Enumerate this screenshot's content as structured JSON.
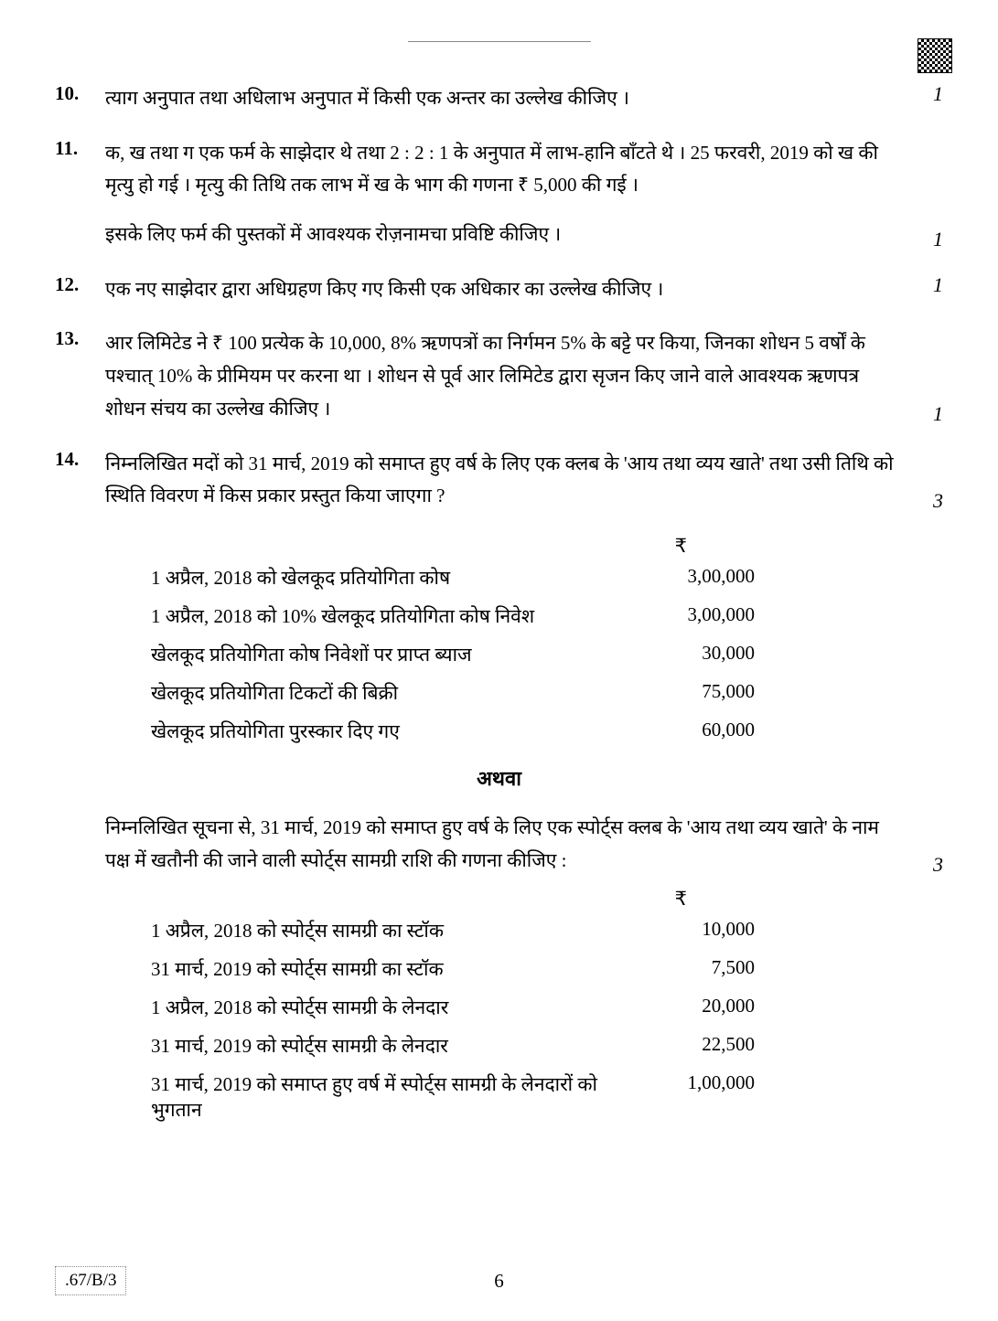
{
  "header": {
    "qr_present": true
  },
  "questions": [
    {
      "num": "10.",
      "text": "त्याग अनुपात तथा अधिलाभ अनुपात में किसी एक अन्तर का उल्लेख कीजिए ।",
      "marks": "1"
    },
    {
      "num": "11.",
      "text": "क, ख तथा ग एक फर्म के साझेदार थे तथा 2 : 2 : 1 के अनुपात में लाभ-हानि बाँटते थे । 25 फरवरी, 2019 को ख की मृत्यु हो गई । मृत्यु की तिथि तक लाभ में ख के भाग की गणना ₹ 5,000 की गई ।",
      "sub_text": "इसके लिए फर्म की पुस्तकों में आवश्यक रोज़नामचा प्रविष्टि कीजिए ।",
      "marks": "1"
    },
    {
      "num": "12.",
      "text": "एक नए साझेदार द्वारा अधिग्रहण किए गए किसी एक अधिकार का उल्लेख कीजिए ।",
      "marks": "1"
    },
    {
      "num": "13.",
      "text": "आर लिमिटेड ने ₹ 100 प्रत्येक के 10,000, 8% ऋणपत्रों का निर्गमन 5% के बट्टे पर किया, जिनका शोधन 5 वर्षों के पश्चात् 10% के प्रीमियम पर करना था । शोधन से पूर्व आर लिमिटेड द्वारा सृजन किए जाने वाले आवश्यक ऋणपत्र शोधन संचय का उल्लेख कीजिए ।",
      "marks": "1"
    },
    {
      "num": "14.",
      "text": "निम्नलिखित मदों को 31 मार्च, 2019 को समाप्त हुए वर्ष के लिए एक क्लब के 'आय तथा व्यय खाते' तथा उसी तिथि को स्थिति विवरण में किस प्रकार प्रस्तुत किया जाएगा ?",
      "marks": "3"
    }
  ],
  "table1": {
    "currency": "₹",
    "rows": [
      {
        "label": "1 अप्रैल, 2018 को खेलकूद प्रतियोगिता कोष",
        "value": "3,00,000"
      },
      {
        "label": "1 अप्रैल, 2018 को 10% खेलकूद प्रतियोगिता कोष निवेश",
        "value": "3,00,000"
      },
      {
        "label": "खेलकूद प्रतियोगिता कोष निवेशों पर प्राप्त ब्याज",
        "value": "30,000"
      },
      {
        "label": "खेलकूद प्रतियोगिता टिकटों की बिक्री",
        "value": "75,000"
      },
      {
        "label": "खेलकूद प्रतियोगिता पुरस्कार दिए गए",
        "value": "60,000"
      }
    ]
  },
  "athva": "अथवा",
  "alt_question": {
    "text": "निम्नलिखित सूचना से, 31 मार्च, 2019 को समाप्त हुए वर्ष के लिए एक स्पोर्ट्स क्लब के 'आय तथा व्यय खाते' के नाम पक्ष में खतौनी की जाने वाली स्पोर्ट्स सामग्री राशि की गणना कीजिए :",
    "marks": "3"
  },
  "table2": {
    "currency": "₹",
    "rows": [
      {
        "label": "1 अप्रैल, 2018 को स्पोर्ट्स सामग्री का स्टॉक",
        "value": "10,000"
      },
      {
        "label": "31 मार्च, 2019 को स्पोर्ट्स सामग्री का स्टॉक",
        "value": "7,500"
      },
      {
        "label": "1 अप्रैल, 2018 को स्पोर्ट्स सामग्री के लेनदार",
        "value": "20,000"
      },
      {
        "label": "31 मार्च, 2019 को स्पोर्ट्स सामग्री के लेनदार",
        "value": "22,500"
      },
      {
        "label": "31 मार्च, 2019 को समाप्त हुए वर्ष में स्पोर्ट्स सामग्री के लेनदारों को भुगतान",
        "value": "1,00,000"
      }
    ]
  },
  "footer": {
    "code": ".67/B/3",
    "page": "6"
  }
}
